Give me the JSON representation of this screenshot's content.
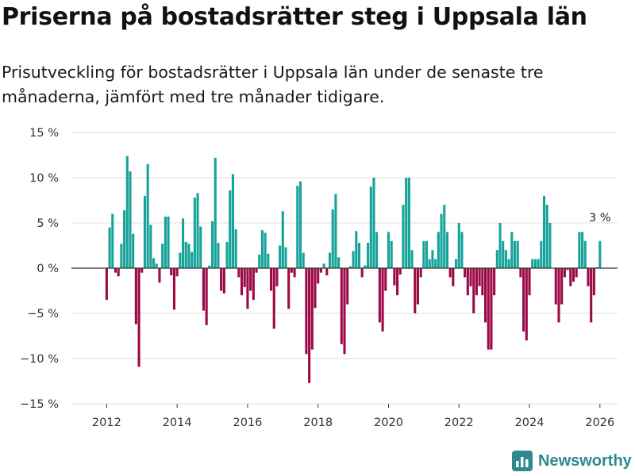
{
  "header": {
    "title": "Priserna på bostadsrätter steg i Uppsala län",
    "subtitle": "Prisutveckling för bostadsrätter i Uppsala län under de senaste tre månaderna, jämfört med tre månader tidigare."
  },
  "colors": {
    "positive": "#16a39a",
    "negative": "#9b0a47",
    "grid": "#dddddd",
    "zero_line": "#333333",
    "brand": "#2c8a8f"
  },
  "chart_data": {
    "type": "bar",
    "title": "Priserna på bostadsrätter steg i Uppsala län",
    "xlabel": "",
    "ylabel": "",
    "unit": "%",
    "ylim": [
      -15,
      15
    ],
    "y_ticks": [
      "15 %",
      "10 %",
      "5 %",
      "0 %",
      "−5 %",
      "−10 %",
      "−15 %"
    ],
    "x_ticks": [
      "2012",
      "2014",
      "2016",
      "2018",
      "2020",
      "2022",
      "2024",
      "2026"
    ],
    "x_range": [
      2011.0,
      2026.5
    ],
    "start": 2012.0,
    "step": 0.08333,
    "values": [
      -3.5,
      4.5,
      6.0,
      -0.5,
      -0.9,
      2.7,
      6.4,
      12.4,
      10.7,
      3.8,
      -6.2,
      -10.9,
      -0.5,
      8.0,
      11.5,
      4.8,
      1.1,
      0.5,
      -1.6,
      2.7,
      5.7,
      5.7,
      -0.8,
      -4.6,
      -0.9,
      1.7,
      5.5,
      2.9,
      2.7,
      1.8,
      7.8,
      8.3,
      4.6,
      -4.7,
      -6.3,
      0.3,
      5.2,
      12.2,
      2.8,
      -2.5,
      -2.8,
      2.9,
      8.6,
      10.4,
      4.3,
      -1.0,
      -3.0,
      -2.1,
      -4.5,
      -2.5,
      -3.5,
      -0.5,
      1.5,
      4.2,
      3.9,
      1.6,
      -2.5,
      -6.7,
      -2.0,
      2.5,
      6.3,
      2.3,
      -4.5,
      -0.5,
      -1.0,
      9.1,
      9.6,
      1.7,
      -9.5,
      -12.7,
      -9.0,
      -4.4,
      -1.7,
      -0.5,
      0.5,
      -0.8,
      1.7,
      6.5,
      8.2,
      1.2,
      -8.4,
      -9.5,
      -4.0,
      0.2,
      1.9,
      4.1,
      2.8,
      -1.0,
      0.3,
      2.8,
      9.0,
      10.0,
      4.0,
      -6.0,
      -7.0,
      -2.5,
      4.0,
      3.0,
      -1.9,
      -3.0,
      -0.7,
      7.0,
      10.0,
      10.0,
      2.0,
      -5.0,
      -4.0,
      -1.0,
      3.0,
      3.0,
      1.0,
      2.0,
      1.0,
      4.0,
      6.0,
      7.0,
      4.0,
      -1.0,
      -2.0,
      1.0,
      5.0,
      4.0,
      -1.0,
      -3.0,
      -2.0,
      -5.0,
      -3.0,
      -2.0,
      -3.0,
      -6.0,
      -9.0,
      -9.0,
      -3.0,
      2.0,
      5.0,
      3.0,
      2.0,
      1.0,
      4.0,
      3.0,
      3.0,
      -1.0,
      -7.0,
      -8.0,
      -3.0,
      1.0,
      1.0,
      1.0,
      3.0,
      8.0,
      7.0,
      5.0,
      0.0,
      -4.0,
      -6.0,
      -4.0,
      -1.0,
      -0.2,
      -2.0,
      -1.5,
      -1.0,
      4.0,
      4.0,
      3.0,
      -2.0,
      -6.0,
      -3.0,
      0.1,
      3.0
    ],
    "annotations": [
      {
        "x": 2026.0,
        "y": 3.0,
        "text": "3 %"
      }
    ]
  },
  "brand": {
    "name": "Newsworthy"
  }
}
